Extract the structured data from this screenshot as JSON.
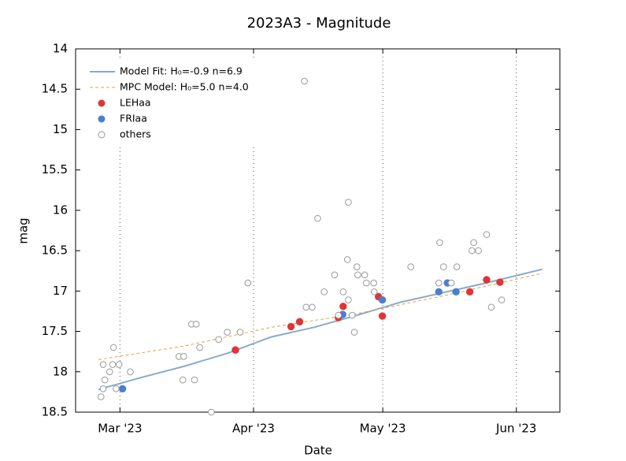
{
  "chart_data": {
    "type": "scatter",
    "title": "2023A3 - Magnitude",
    "x_label": "Date",
    "y_label": "mag",
    "xlim": [
      49.7,
      162.1
    ],
    "xticks": [
      {
        "value": 60,
        "label": "Mar '23"
      },
      {
        "value": 91,
        "label": "Apr '23"
      },
      {
        "value": 121,
        "label": "May '23"
      },
      {
        "value": 152,
        "label": "Jun '23"
      }
    ],
    "ylim": [
      14,
      18.5
    ],
    "yticks": [
      14,
      14.5,
      15,
      15.5,
      16,
      16.5,
      17,
      17.5,
      18,
      18.5
    ],
    "y_inverted": true,
    "grid": "x",
    "legend": "upper left",
    "series": [
      {
        "name": "Model Fit: H₀=-0.9 n=6.9",
        "style": "line",
        "color": "#88aacc",
        "x": [
          55,
          65,
          75,
          85,
          95,
          105,
          115,
          125,
          135,
          145,
          158
        ],
        "values": [
          18.22,
          18.07,
          17.93,
          17.77,
          17.57,
          17.45,
          17.3,
          17.14,
          17.02,
          16.9,
          16.73
        ]
      },
      {
        "name": "MPC Model: H₀=5.0 n=4.0",
        "style": "dashed",
        "color": "#e8a040",
        "x": [
          55,
          75,
          95,
          115,
          135,
          158
        ],
        "values": [
          17.85,
          17.68,
          17.45,
          17.28,
          17.06,
          16.78
        ]
      },
      {
        "name": "LEHaa",
        "style": "filled",
        "color": "#e03535",
        "x": [
          86.8,
          99.7,
          101.7,
          110.7,
          111.8,
          120.0,
          120.9,
          141.2,
          145.1,
          148.2
        ],
        "values": [
          17.73,
          17.44,
          17.38,
          17.33,
          17.19,
          17.07,
          17.31,
          17.01,
          16.86,
          16.89
        ]
      },
      {
        "name": "FRIaa",
        "style": "filled",
        "color": "#4a7fd0",
        "x": [
          60.6,
          111.7,
          120.9,
          134.0,
          136.0,
          138.0
        ],
        "values": [
          18.21,
          17.29,
          17.11,
          17.01,
          16.9,
          17.01
        ]
      },
      {
        "name": "others",
        "style": "open",
        "color": "#999999",
        "x": [
          55.6,
          56.1,
          56.1,
          56.5,
          57.6,
          58.5,
          58.3,
          59.1,
          59.8,
          62.4,
          73.7,
          74.8,
          74.6,
          76.6,
          77.7,
          77.3,
          78.5,
          81.2,
          82.9,
          84.9,
          87.9,
          89.7,
          102.8,
          103.2,
          104.6,
          105.9,
          107.4,
          109.8,
          110.7,
          111.8,
          112.8,
          113.0,
          113.0,
          113.9,
          114.4,
          115.0,
          115.2,
          116.8,
          117.2,
          118.9,
          119.0,
          127.5,
          134.2,
          134.0,
          135.1,
          136.9,
          138.2,
          141.7,
          142.1,
          143.2,
          145.1,
          146.2,
          148.6
        ],
        "values": [
          18.31,
          18.21,
          17.91,
          18.1,
          18.0,
          17.7,
          17.91,
          18.21,
          17.91,
          18.0,
          17.81,
          17.81,
          18.1,
          17.41,
          17.41,
          18.1,
          17.7,
          18.5,
          17.6,
          17.51,
          17.51,
          16.9,
          14.4,
          17.2,
          17.2,
          16.1,
          17.01,
          16.8,
          17.3,
          17.01,
          16.61,
          15.9,
          17.11,
          17.3,
          17.51,
          16.7,
          16.8,
          16.8,
          16.9,
          16.9,
          17.01,
          16.7,
          16.4,
          16.9,
          16.7,
          16.9,
          16.7,
          16.5,
          16.4,
          16.5,
          16.3,
          17.2,
          17.11
        ]
      }
    ]
  }
}
